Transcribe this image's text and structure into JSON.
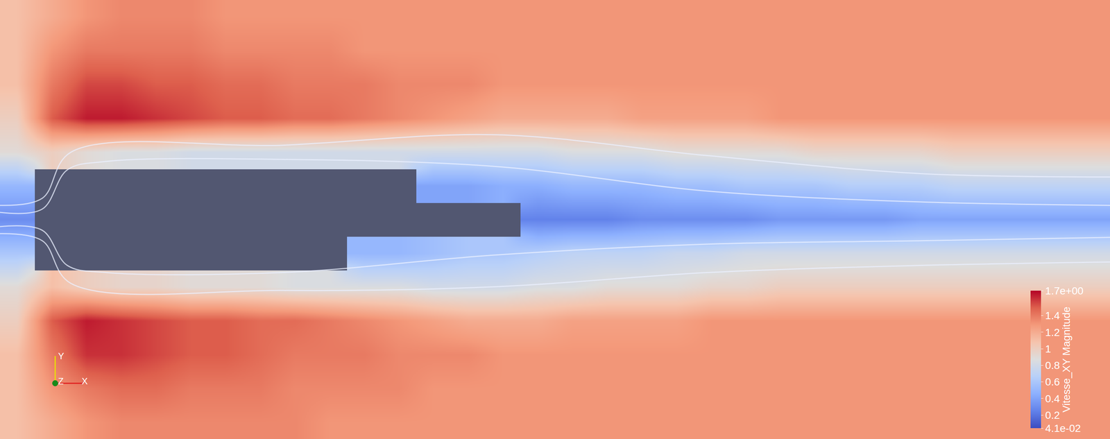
{
  "chart_data": {
    "type": "heatmap",
    "x": [
      0,
      1,
      2,
      3,
      4,
      5,
      6,
      7,
      8,
      9,
      10,
      11,
      12,
      13,
      14,
      15,
      16,
      17,
      18,
      19,
      20,
      21,
      22,
      23,
      24,
      25,
      26,
      27,
      28,
      29,
      30,
      31
    ],
    "y": [
      0,
      1,
      2,
      3,
      4,
      5,
      6,
      7,
      8,
      9,
      10,
      11,
      12
    ],
    "xlim": [
      -0.5,
      31.5
    ],
    "ylim": [
      -0.5,
      12.5
    ],
    "tick_labels": false,
    "grid": false,
    "z": [
      [
        1.1,
        1.2,
        1.3,
        1.35,
        1.35,
        1.35,
        1.35,
        1.35,
        1.35,
        1.3,
        1.3,
        1.3,
        1.3,
        1.3,
        1.3,
        1.3,
        1.3,
        1.3,
        1.3,
        1.3,
        1.3,
        1.3,
        1.3,
        1.3,
        1.3,
        1.3,
        1.3,
        1.3,
        1.3,
        1.3,
        1.3,
        1.3
      ],
      [
        1.1,
        1.3,
        1.4,
        1.45,
        1.45,
        1.4,
        1.4,
        1.4,
        1.35,
        1.35,
        1.35,
        1.35,
        1.3,
        1.3,
        1.3,
        1.3,
        1.3,
        1.3,
        1.3,
        1.3,
        1.3,
        1.3,
        1.3,
        1.3,
        1.3,
        1.3,
        1.3,
        1.3,
        1.3,
        1.3,
        1.3,
        1.3
      ],
      [
        1.1,
        1.4,
        1.6,
        1.6,
        1.55,
        1.5,
        1.5,
        1.45,
        1.4,
        1.4,
        1.4,
        1.35,
        1.35,
        1.35,
        1.3,
        1.3,
        1.3,
        1.3,
        1.3,
        1.3,
        1.3,
        1.3,
        1.3,
        1.3,
        1.3,
        1.3,
        1.3,
        1.3,
        1.3,
        1.3,
        1.3,
        1.3
      ],
      [
        1.0,
        1.5,
        1.65,
        1.6,
        1.55,
        1.5,
        1.5,
        1.45,
        1.45,
        1.4,
        1.35,
        1.3,
        1.25,
        1.2,
        1.2,
        1.2,
        1.25,
        1.25,
        1.25,
        1.25,
        1.3,
        1.3,
        1.3,
        1.3,
        1.3,
        1.3,
        1.3,
        1.3,
        1.3,
        1.3,
        1.3,
        1.3
      ],
      [
        0.9,
        1.1,
        1.0,
        0.95,
        0.95,
        0.9,
        0.9,
        0.9,
        0.85,
        0.85,
        0.85,
        0.85,
        0.8,
        0.8,
        0.8,
        0.85,
        0.85,
        0.9,
        0.9,
        0.9,
        0.95,
        0.95,
        1.0,
        1.0,
        1.0,
        1.0,
        1.0,
        1.0,
        1.0,
        1.0,
        1.0,
        1.0
      ],
      [
        0.6,
        null,
        null,
        null,
        null,
        null,
        null,
        null,
        null,
        null,
        0.5,
        0.5,
        0.55,
        0.6,
        0.6,
        0.65,
        0.7,
        0.7,
        0.7,
        0.75,
        0.75,
        0.8,
        0.8,
        0.8,
        0.8,
        0.8,
        0.8,
        0.8,
        0.8,
        0.8,
        0.8,
        0.8
      ],
      [
        0.3,
        null,
        null,
        null,
        null,
        null,
        null,
        null,
        null,
        null,
        null,
        null,
        null,
        null,
        null,
        0.25,
        0.25,
        0.25,
        0.3,
        0.3,
        0.3,
        0.3,
        0.35,
        0.35,
        0.35,
        0.35,
        0.4,
        0.4,
        0.4,
        0.4,
        0.4,
        0.4
      ],
      [
        0.5,
        null,
        null,
        null,
        null,
        null,
        null,
        null,
        null,
        null,
        null,
        null,
        0.4,
        0.4,
        0.45,
        0.45,
        0.5,
        0.5,
        0.5,
        0.55,
        0.55,
        0.6,
        0.6,
        0.6,
        0.65,
        0.65,
        0.65,
        0.7,
        0.7,
        0.7,
        0.7,
        0.7
      ],
      [
        0.9,
        1.0,
        0.9,
        0.85,
        0.85,
        0.8,
        0.8,
        0.8,
        0.8,
        0.8,
        0.8,
        0.8,
        0.8,
        0.8,
        0.8,
        0.8,
        0.85,
        0.85,
        0.85,
        0.9,
        0.9,
        0.9,
        0.9,
        0.95,
        0.95,
        0.95,
        0.95,
        1.0,
        1.0,
        1.0,
        1.0,
        1.0
      ],
      [
        1.0,
        1.5,
        1.65,
        1.65,
        1.6,
        1.55,
        1.5,
        1.5,
        1.45,
        1.45,
        1.4,
        1.35,
        1.3,
        1.25,
        1.2,
        1.2,
        1.2,
        1.2,
        1.25,
        1.25,
        1.25,
        1.25,
        1.3,
        1.3,
        1.3,
        1.3,
        1.3,
        1.3,
        1.3,
        1.3,
        1.3,
        1.3
      ],
      [
        1.1,
        1.4,
        1.55,
        1.55,
        1.5,
        1.5,
        1.45,
        1.45,
        1.4,
        1.4,
        1.4,
        1.35,
        1.35,
        1.35,
        1.3,
        1.3,
        1.3,
        1.3,
        1.3,
        1.3,
        1.3,
        1.3,
        1.3,
        1.3,
        1.3,
        1.3,
        1.3,
        1.3,
        1.3,
        1.3,
        1.3,
        1.3
      ],
      [
        1.1,
        1.3,
        1.4,
        1.4,
        1.4,
        1.4,
        1.35,
        1.35,
        1.35,
        1.35,
        1.3,
        1.3,
        1.3,
        1.3,
        1.3,
        1.3,
        1.3,
        1.3,
        1.3,
        1.3,
        1.3,
        1.3,
        1.3,
        1.3,
        1.3,
        1.3,
        1.3,
        1.3,
        1.3,
        1.3,
        1.3,
        1.3
      ],
      [
        1.1,
        1.2,
        1.3,
        1.35,
        1.35,
        1.35,
        1.3,
        1.3,
        1.3,
        1.3,
        1.3,
        1.3,
        1.3,
        1.3,
        1.3,
        1.3,
        1.3,
        1.3,
        1.3,
        1.3,
        1.3,
        1.3,
        1.3,
        1.3,
        1.3,
        1.3,
        1.3,
        1.3,
        1.3,
        1.3,
        1.3,
        1.3
      ]
    ],
    "colorbar": {
      "title": "Vitesse_XY Magnitude",
      "range": [
        0.041,
        1.7
      ],
      "ticks": [
        {
          "value": 1.7,
          "label": "1.7e+00"
        },
        1.4,
        1.2,
        1,
        0.8,
        0.6,
        0.4,
        0.2,
        {
          "value": 0.041,
          "label": "4.1e-02"
        }
      ]
    },
    "streamlines": [
      {
        "x": [
          -0.5,
          0.72,
          1.44,
          2.56,
          7.66,
          13.79,
          19.91,
          26.03,
          31.5
        ],
        "y": [
          6.21,
          6.31,
          7.47,
          7.72,
          7.78,
          7.57,
          6.84,
          6.52,
          6.42
        ]
      },
      {
        "x": [
          -0.5,
          0.72,
          1.44,
          2.56,
          7.66,
          13.79,
          19.91,
          26.03,
          31.5
        ],
        "y": [
          5.79,
          5.68,
          4.64,
          4.43,
          4.43,
          4.95,
          5.27,
          5.37,
          5.47
        ]
      },
      {
        "x": [
          -0.5,
          0.72,
          1.54,
          7.66,
          13.79,
          19.91,
          26.03,
          31.5
        ],
        "y": [
          6.42,
          6.63,
          7.99,
          8.2,
          8.51,
          7.89,
          7.36,
          7.26
        ]
      },
      {
        "x": [
          -0.5,
          0.72,
          1.54,
          7.66,
          13.79,
          19.91,
          26.03,
          31.5
        ],
        "y": [
          5.58,
          5.37,
          4.11,
          3.9,
          4.01,
          4.43,
          4.64,
          4.74
        ]
      }
    ],
    "axes_triad": {
      "x": "X",
      "y": "Y",
      "z": "Z"
    }
  }
}
